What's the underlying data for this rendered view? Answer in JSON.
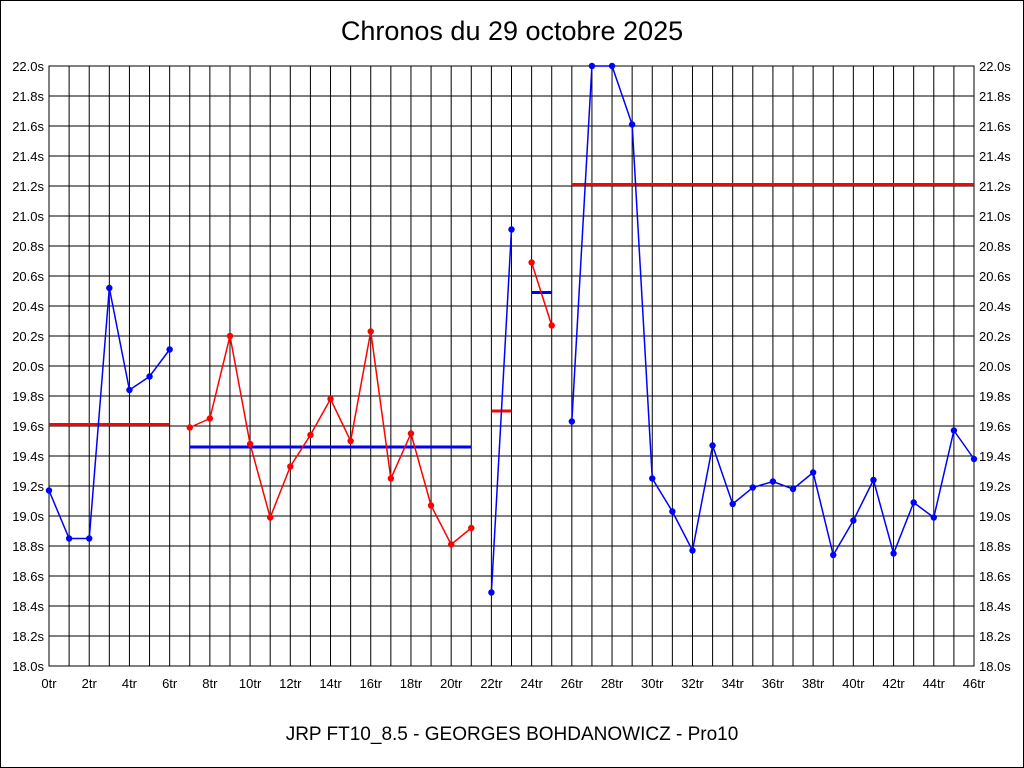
{
  "title": "Chronos du 29 octobre 2025",
  "subtitle": "JRP FT10_8.5 - GEORGES BOHDANOWICZ - Pro10",
  "chart_data": {
    "type": "line",
    "title": "Chronos du 29 octobre 2025",
    "xlabel": "",
    "ylabel": "",
    "xlim": [
      0,
      46
    ],
    "ylim": [
      18.0,
      22.0
    ],
    "grid": true,
    "y_ticks": [
      "18.0s",
      "18.2s",
      "18.4s",
      "18.6s",
      "18.8s",
      "19.0s",
      "19.2s",
      "19.4s",
      "19.6s",
      "19.8s",
      "20.0s",
      "20.2s",
      "20.4s",
      "20.6s",
      "20.8s",
      "21.0s",
      "21.2s",
      "21.4s",
      "21.6s",
      "21.8s",
      "22.0s"
    ],
    "x_ticks": [
      "0tr",
      "2tr",
      "4tr",
      "6tr",
      "8tr",
      "10tr",
      "12tr",
      "14tr",
      "16tr",
      "18tr",
      "20tr",
      "22tr",
      "24tr",
      "26tr",
      "28tr",
      "30tr",
      "32tr",
      "34tr",
      "36tr",
      "38tr",
      "40tr",
      "42tr",
      "44tr",
      "46tr"
    ],
    "segments": [
      {
        "color": "#0000ff",
        "x": [
          0,
          1,
          2,
          3,
          4,
          5,
          6
        ],
        "y": [
          19.17,
          18.85,
          18.85,
          20.52,
          19.84,
          19.93,
          20.11
        ]
      },
      {
        "color": "#ff0000",
        "x": [
          7,
          8,
          9,
          10,
          11,
          12,
          13,
          14,
          15,
          16,
          17,
          18,
          19,
          20,
          21
        ],
        "y": [
          19.59,
          19.65,
          20.2,
          19.48,
          18.99,
          19.33,
          19.54,
          19.78,
          19.5,
          20.23,
          19.25,
          19.55,
          19.07,
          18.81,
          18.92
        ]
      },
      {
        "color": "#0000ff",
        "x": [
          22,
          23
        ],
        "y": [
          18.49,
          20.91
        ]
      },
      {
        "color": "#ff0000",
        "x": [
          24,
          25
        ],
        "y": [
          20.69,
          20.27
        ]
      },
      {
        "color": "#0000ff",
        "x": [
          26,
          27,
          28,
          29,
          30,
          31,
          32,
          33,
          34,
          35,
          36,
          37,
          38,
          39,
          40,
          41,
          42,
          43,
          44,
          45,
          46
        ],
        "y": [
          19.63,
          22.0,
          22.0,
          21.61,
          19.25,
          19.03,
          18.77,
          19.47,
          19.08,
          19.19,
          19.23,
          19.18,
          19.29,
          18.74,
          18.97,
          19.24,
          18.75,
          19.09,
          18.99,
          19.57,
          19.38
        ]
      }
    ],
    "averages": [
      {
        "color": "#ff0000",
        "x": [
          0,
          6
        ],
        "y": 19.61
      },
      {
        "color": "#0000ff",
        "x": [
          7,
          21
        ],
        "y": 19.46
      },
      {
        "color": "#ff0000",
        "x": [
          22,
          23
        ],
        "y": 19.7
      },
      {
        "color": "#0000ff",
        "x": [
          24,
          25
        ],
        "y": 20.49
      },
      {
        "color": "#ff0000",
        "x": [
          26,
          46
        ],
        "y": 21.21
      }
    ]
  }
}
